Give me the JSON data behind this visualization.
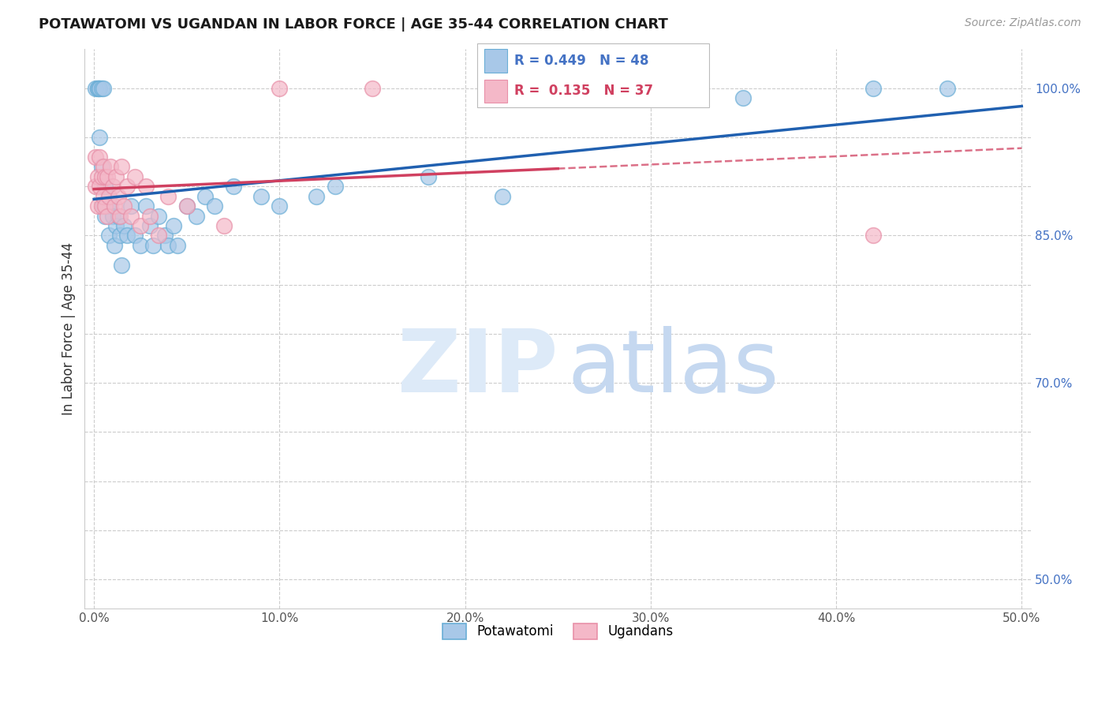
{
  "title": "POTAWATOMI VS UGANDAN IN LABOR FORCE | AGE 35-44 CORRELATION CHART",
  "source": "Source: ZipAtlas.com",
  "ylabel": "In Labor Force | Age 35-44",
  "xlim": [
    -0.005,
    0.505
  ],
  "ylim": [
    0.47,
    1.04
  ],
  "xticks": [
    0.0,
    0.1,
    0.2,
    0.3,
    0.4,
    0.5
  ],
  "xticklabels": [
    "0.0%",
    "10.0%",
    "20.0%",
    "30.0%",
    "40.0%",
    "50.0%"
  ],
  "ytick_vals": [
    0.5,
    0.55,
    0.6,
    0.65,
    0.7,
    0.75,
    0.8,
    0.85,
    0.9,
    0.95,
    1.0
  ],
  "ytick_labels": [
    "50.0%",
    "",
    "",
    "",
    "70.0%",
    "",
    "",
    "85.0%",
    "",
    "",
    "100.0%"
  ],
  "legend_blue_R": "0.449",
  "legend_blue_N": "48",
  "legend_pink_R": "0.135",
  "legend_pink_N": "37",
  "blue_face": "#a8c8e8",
  "blue_edge": "#6aaed6",
  "pink_face": "#f4b8c8",
  "pink_edge": "#e890a8",
  "blue_line": "#2060b0",
  "pink_line": "#d04060",
  "ytick_color": "#4472C4",
  "xtick_color": "#555555",
  "grid_color": "#cccccc",
  "potawatomi_x": [
    0.001,
    0.002,
    0.002,
    0.003,
    0.003,
    0.003,
    0.004,
    0.004,
    0.005,
    0.005,
    0.006,
    0.006,
    0.007,
    0.008,
    0.009,
    0.01,
    0.011,
    0.012,
    0.013,
    0.014,
    0.015,
    0.016,
    0.018,
    0.02,
    0.022,
    0.025,
    0.028,
    0.03,
    0.032,
    0.035,
    0.038,
    0.04,
    0.043,
    0.045,
    0.05,
    0.055,
    0.06,
    0.065,
    0.075,
    0.09,
    0.1,
    0.12,
    0.13,
    0.18,
    0.22,
    0.35,
    0.42,
    0.46
  ],
  "potawatomi_y": [
    1.0,
    1.0,
    1.0,
    1.0,
    1.0,
    0.95,
    1.0,
    0.92,
    1.0,
    0.88,
    0.9,
    0.87,
    0.88,
    0.85,
    0.88,
    0.87,
    0.84,
    0.86,
    0.87,
    0.85,
    0.82,
    0.86,
    0.85,
    0.88,
    0.85,
    0.84,
    0.88,
    0.86,
    0.84,
    0.87,
    0.85,
    0.84,
    0.86,
    0.84,
    0.88,
    0.87,
    0.89,
    0.88,
    0.9,
    0.89,
    0.88,
    0.89,
    0.9,
    0.91,
    0.89,
    0.99,
    1.0,
    1.0
  ],
  "ugandan_x": [
    0.001,
    0.001,
    0.002,
    0.002,
    0.003,
    0.003,
    0.004,
    0.004,
    0.005,
    0.005,
    0.006,
    0.006,
    0.007,
    0.007,
    0.008,
    0.009,
    0.01,
    0.011,
    0.012,
    0.013,
    0.014,
    0.015,
    0.016,
    0.018,
    0.02,
    0.022,
    0.025,
    0.028,
    0.03,
    0.035,
    0.04,
    0.05,
    0.07,
    0.1,
    0.15,
    0.25,
    0.42
  ],
  "ugandan_y": [
    0.93,
    0.9,
    0.91,
    0.88,
    0.93,
    0.9,
    0.91,
    0.88,
    0.92,
    0.89,
    0.91,
    0.88,
    0.91,
    0.87,
    0.89,
    0.92,
    0.9,
    0.88,
    0.91,
    0.89,
    0.87,
    0.92,
    0.88,
    0.9,
    0.87,
    0.91,
    0.86,
    0.9,
    0.87,
    0.85,
    0.89,
    0.88,
    0.86,
    1.0,
    1.0,
    1.0,
    0.85
  ]
}
